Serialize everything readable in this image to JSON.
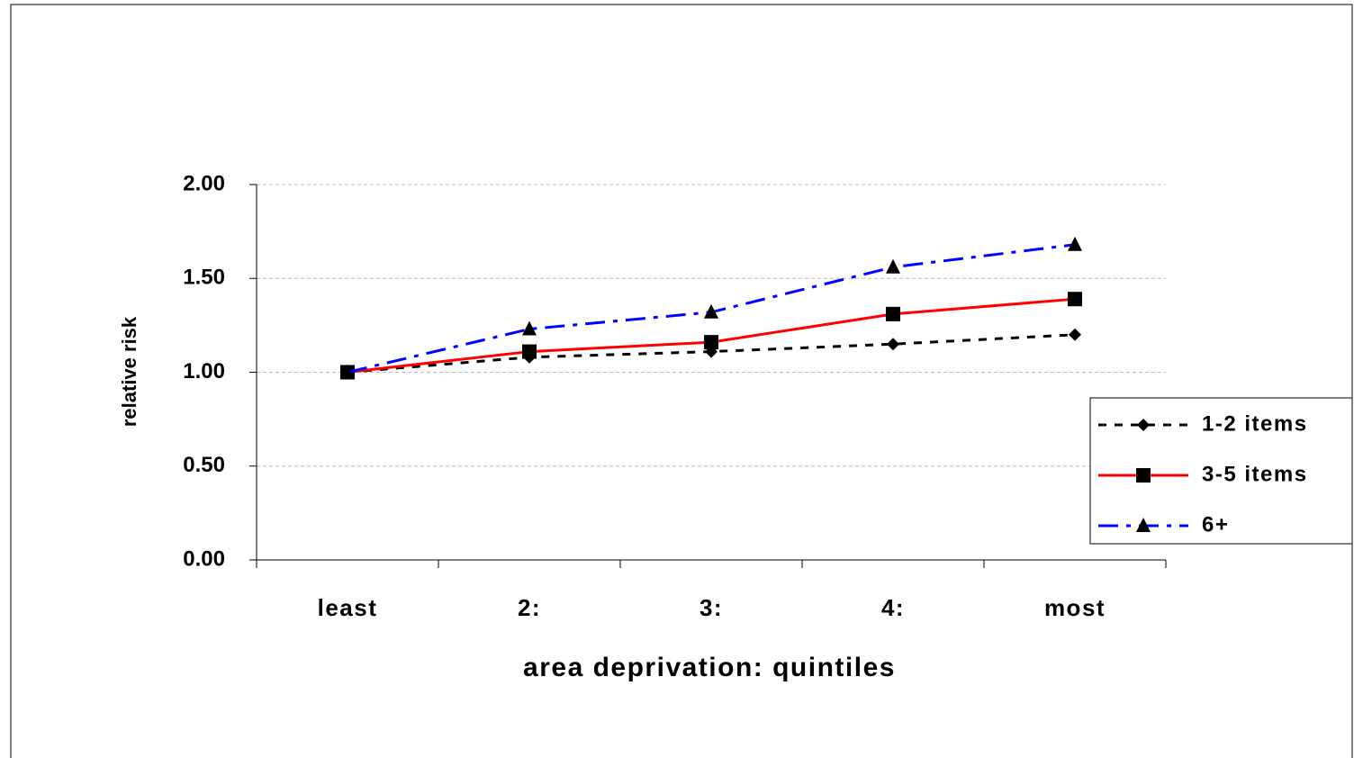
{
  "chart_data": {
    "type": "line",
    "x_label": "area deprivation: quintiles",
    "y_label": "relative risk",
    "categories": [
      "least",
      "2:",
      "3:",
      "4:",
      "most"
    ],
    "series": [
      {
        "name": "1-2 items",
        "color": "#000000",
        "dash": "dashed",
        "marker": "diamond",
        "values": [
          1.0,
          1.08,
          1.11,
          1.15,
          1.2
        ]
      },
      {
        "name": "3-5 items",
        "color": "#ff0000",
        "dash": "solid",
        "marker": "square",
        "values": [
          1.0,
          1.11,
          1.16,
          1.31,
          1.39
        ]
      },
      {
        "name": "6+",
        "color": "#0000ff",
        "dash": "dashdot",
        "marker": "triangle",
        "values": [
          1.0,
          1.23,
          1.32,
          1.56,
          1.68
        ]
      }
    ],
    "ylim": [
      0,
      2
    ],
    "yticks": [
      {
        "value": 0,
        "label": "0.00"
      },
      {
        "value": 0.5,
        "label": "0.50"
      },
      {
        "value": 1,
        "label": "1.00"
      },
      {
        "value": 1.5,
        "label": "1.50"
      },
      {
        "value": 2,
        "label": "2.00"
      }
    ],
    "grid": true,
    "legend": "right"
  }
}
